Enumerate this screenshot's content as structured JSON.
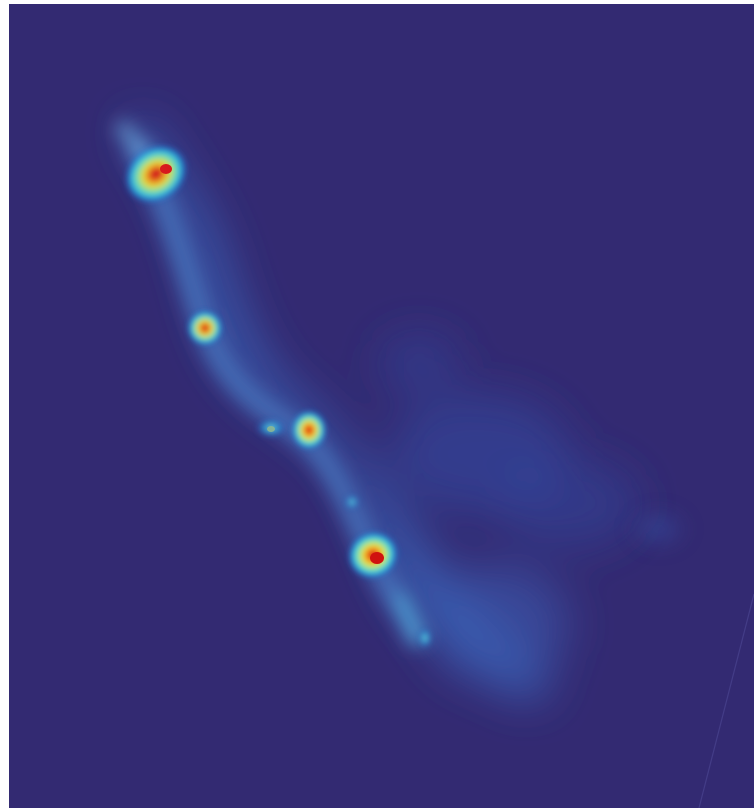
{
  "image": {
    "kind": "density heatmap",
    "colormap": "jet",
    "background_color": "#332a72",
    "palette": [
      "#332a72",
      "#2e3f9e",
      "#1f6fd0",
      "#2ec4e6",
      "#7ee6a8",
      "#e9e53a",
      "#f5a21a",
      "#e01616"
    ],
    "features": [
      {
        "name": "peak-1",
        "intensity": 0.92
      },
      {
        "name": "peak-2",
        "intensity": 0.95
      },
      {
        "name": "peak-3",
        "intensity": 1.0
      },
      {
        "name": "peak-4",
        "intensity": 1.0
      },
      {
        "name": "knot-small",
        "intensity": 0.62
      },
      {
        "name": "knot-lower",
        "intensity": 0.6
      },
      {
        "name": "knot-mid",
        "intensity": 0.45
      },
      {
        "name": "diffuse-cloud-right",
        "intensity": 0.25
      }
    ]
  }
}
